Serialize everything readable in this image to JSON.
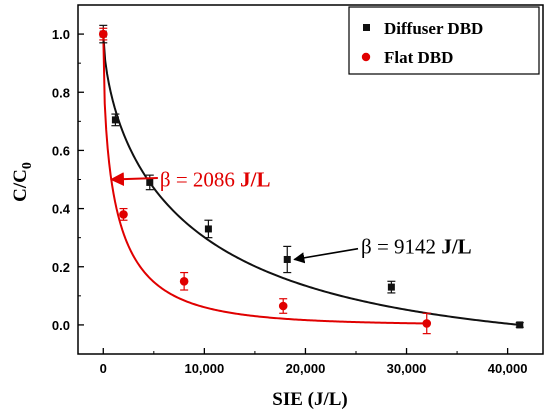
{
  "chart_data": {
    "type": "scatter",
    "xlabel": "SIE (J/L)",
    "ylabel_main": "C/C",
    "ylabel_sub": "0",
    "xlim": [
      -2500,
      43500
    ],
    "ylim": [
      -0.1,
      1.1
    ],
    "xticks": [
      0,
      10000,
      20000,
      30000,
      40000
    ],
    "xtick_labels": [
      "0",
      "10,000",
      "20,000",
      "30,000",
      "40,000"
    ],
    "yticks": [
      0.0,
      0.2,
      0.4,
      0.6,
      0.8,
      1.0
    ],
    "ytick_labels": [
      "0.0",
      "0.2",
      "0.4",
      "0.6",
      "0.8",
      "1.0"
    ],
    "legend_position": "top-right",
    "series": [
      {
        "name": "Diffuser DBD",
        "color": "#111111",
        "marker": "square",
        "x": [
          0,
          1200,
          4600,
          10400,
          18200,
          28500,
          41200
        ],
        "y": [
          1.0,
          0.705,
          0.49,
          0.33,
          0.225,
          0.13,
          0.0
        ],
        "err": [
          0.03,
          0.02,
          0.025,
          0.03,
          0.045,
          0.02,
          0.008
        ],
        "fit_beta": 9142
      },
      {
        "name": "Flat DBD",
        "color": "#e00000",
        "marker": "circle",
        "x": [
          0,
          2000,
          8000,
          17800,
          32000
        ],
        "y": [
          1.0,
          0.38,
          0.15,
          0.065,
          0.005
        ],
        "err": [
          0.02,
          0.02,
          0.03,
          0.025,
          0.035
        ],
        "fit_beta": 2086
      }
    ],
    "annotations": [
      {
        "beta_symbol": "β",
        "eq": " = 2086 ",
        "unit": "J/L",
        "color": "#e00000",
        "x": 2300,
        "y": 0.5
      },
      {
        "beta_symbol": "β",
        "eq": " = 9142 ",
        "unit": "J/L",
        "color": "#000000",
        "x": 25500,
        "y": 0.27
      }
    ]
  }
}
